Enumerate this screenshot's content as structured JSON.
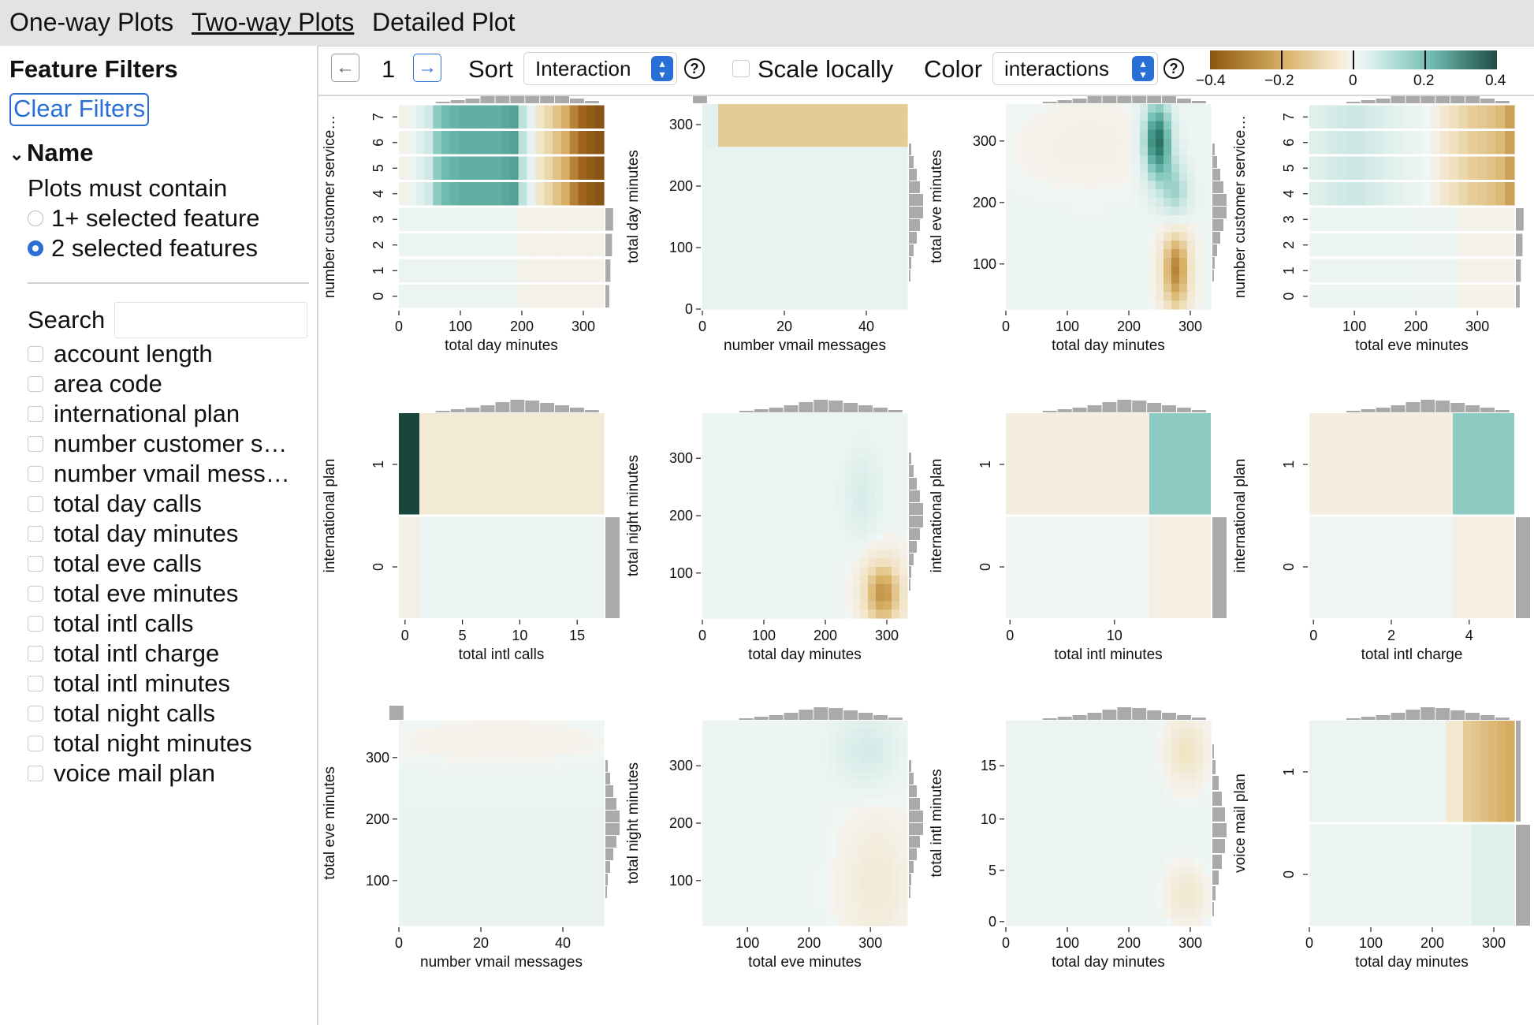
{
  "tabs": [
    {
      "label": "One-way Plots",
      "active": false
    },
    {
      "label": "Two-way Plots",
      "active": true
    },
    {
      "label": "Detailed Plot",
      "active": false
    }
  ],
  "sidebar": {
    "title": "Feature Filters",
    "clear_label": "Clear Filters",
    "name_section": "Name",
    "must_contain": "Plots must contain",
    "options": [
      {
        "label": "1+ selected feature",
        "selected": false
      },
      {
        "label": "2 selected features",
        "selected": true
      }
    ],
    "search_label": "Search",
    "search_value": "",
    "features": [
      "account length",
      "area code",
      "international plan",
      "number customer s…",
      "number vmail mess…",
      "total day calls",
      "total day minutes",
      "total eve calls",
      "total eve minutes",
      "total intl calls",
      "total intl charge",
      "total intl minutes",
      "total night calls",
      "total night minutes",
      "voice mail plan"
    ]
  },
  "toolbar": {
    "page": "1",
    "sort_label": "Sort",
    "sort_value": "Interaction",
    "scale_label": "Scale locally",
    "scale_checked": false,
    "color_label": "Color",
    "color_value": "interactions",
    "help_glyph": "?",
    "back_icon": "arrow-left-icon",
    "forward_icon": "arrow-right-icon"
  },
  "legend": {
    "ticks": [
      "−0.4",
      "−0.2",
      "0",
      "0.2",
      "0.4"
    ],
    "min": -0.4,
    "max": 0.4
  },
  "colors": {
    "accent": "#2a6fd6",
    "negative": "#8c5510",
    "positive": "#1e4d44",
    "neutral": "#f5f5f5",
    "histogram": "#aaaaaa"
  },
  "plots": [
    {
      "xlabel": "total day minutes",
      "ylabel": "number customer service…",
      "xticks": [
        "0",
        "100",
        "200",
        "300"
      ],
      "yticks": [
        "0",
        "1",
        "2",
        "3",
        "4",
        "5",
        "6",
        "7"
      ],
      "kind": "stack-a"
    },
    {
      "xlabel": "number vmail messages",
      "ylabel": "total day minutes",
      "xticks": [
        "0",
        "20",
        "40"
      ],
      "yticks": [
        "0",
        "100",
        "200",
        "300"
      ],
      "kind": "vmail-day"
    },
    {
      "xlabel": "total day minutes",
      "ylabel": "total eve minutes",
      "xticks": [
        "0",
        "100",
        "200",
        "300"
      ],
      "yticks": [
        "100",
        "200",
        "300"
      ],
      "kind": "day-eve"
    },
    {
      "xlabel": "total eve minutes",
      "ylabel": "number customer service…",
      "xticks": [
        "100",
        "200",
        "300"
      ],
      "yticks": [
        "0",
        "1",
        "2",
        "3",
        "4",
        "5",
        "6",
        "7"
      ],
      "kind": "stack-b"
    },
    {
      "xlabel": "total intl calls",
      "ylabel": "international plan",
      "xticks": [
        "0",
        "5",
        "10",
        "15"
      ],
      "yticks": [
        "0",
        "1"
      ],
      "kind": "intl-calls"
    },
    {
      "xlabel": "total day minutes",
      "ylabel": "total night minutes",
      "xticks": [
        "0",
        "100",
        "200",
        "300"
      ],
      "yticks": [
        "100",
        "200",
        "300"
      ],
      "kind": "day-night"
    },
    {
      "xlabel": "total intl minutes",
      "ylabel": "international plan",
      "xticks": [
        "0",
        "10"
      ],
      "yticks": [
        "0",
        "1"
      ],
      "kind": "intl-min"
    },
    {
      "xlabel": "total intl charge",
      "ylabel": "international plan",
      "xticks": [
        "0",
        "2",
        "4"
      ],
      "yticks": [
        "0",
        "1"
      ],
      "kind": "intl-charge"
    },
    {
      "xlabel": "number vmail messages",
      "ylabel": "total eve minutes",
      "xticks": [
        "0",
        "20",
        "40"
      ],
      "yticks": [
        "100",
        "200",
        "300"
      ],
      "kind": "vmail-eve"
    },
    {
      "xlabel": "total eve minutes",
      "ylabel": "total night minutes",
      "xticks": [
        "100",
        "200",
        "300"
      ],
      "yticks": [
        "100",
        "200",
        "300"
      ],
      "kind": "eve-night"
    },
    {
      "xlabel": "total day minutes",
      "ylabel": "total intl minutes",
      "xticks": [
        "0",
        "100",
        "200",
        "300"
      ],
      "yticks": [
        "0",
        "5",
        "10",
        "15"
      ],
      "kind": "day-intl"
    },
    {
      "xlabel": "total day minutes",
      "ylabel": "voice mail plan",
      "xticks": [
        "0",
        "100",
        "200",
        "300"
      ],
      "yticks": [
        "0",
        "1"
      ],
      "kind": "day-vmail"
    }
  ]
}
